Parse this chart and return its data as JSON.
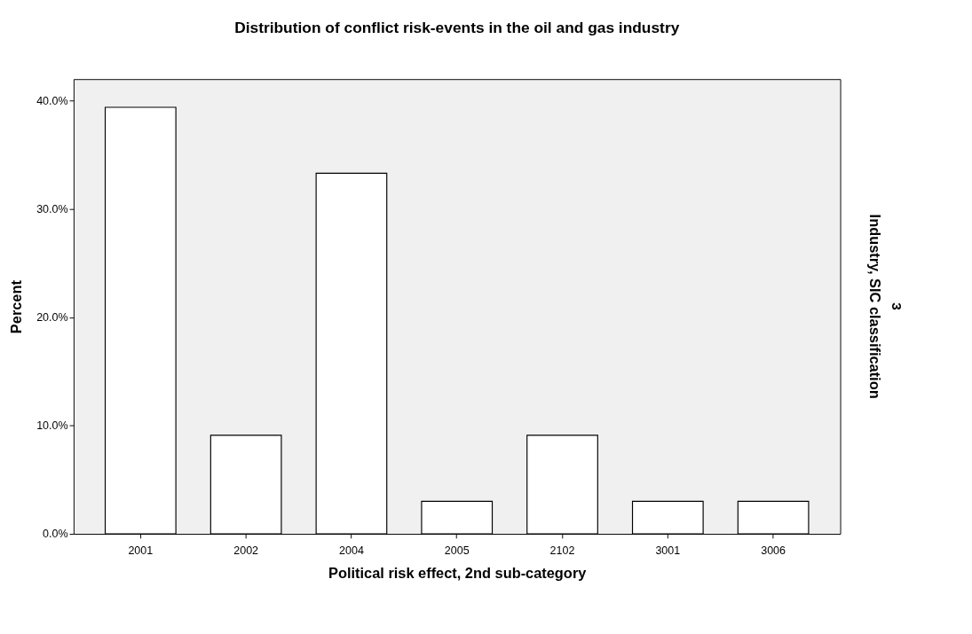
{
  "chart_data": {
    "type": "bar",
    "title": "Distribution of conflict risk-events in the oil and gas industry",
    "xlabel": "Political risk effect, 2nd sub-category",
    "ylabel": "Percent",
    "categories": [
      "2001",
      "2002",
      "2004",
      "2005",
      "2102",
      "3001",
      "3006"
    ],
    "values": [
      39.4,
      9.1,
      33.3,
      3.0,
      9.1,
      3.0,
      3.0
    ],
    "color": "#ffffff",
    "ylim": [
      0,
      42
    ],
    "yticks": [
      {
        "value": 0,
        "label": "0.0%"
      },
      {
        "value": 10,
        "label": "10.0%"
      },
      {
        "value": 20,
        "label": "20.0%"
      },
      {
        "value": 30,
        "label": "30.0%"
      },
      {
        "value": 40,
        "label": "40.0%"
      }
    ],
    "annotations": [
      "Industry, SIC classification",
      "3"
    ],
    "grid": false
  }
}
